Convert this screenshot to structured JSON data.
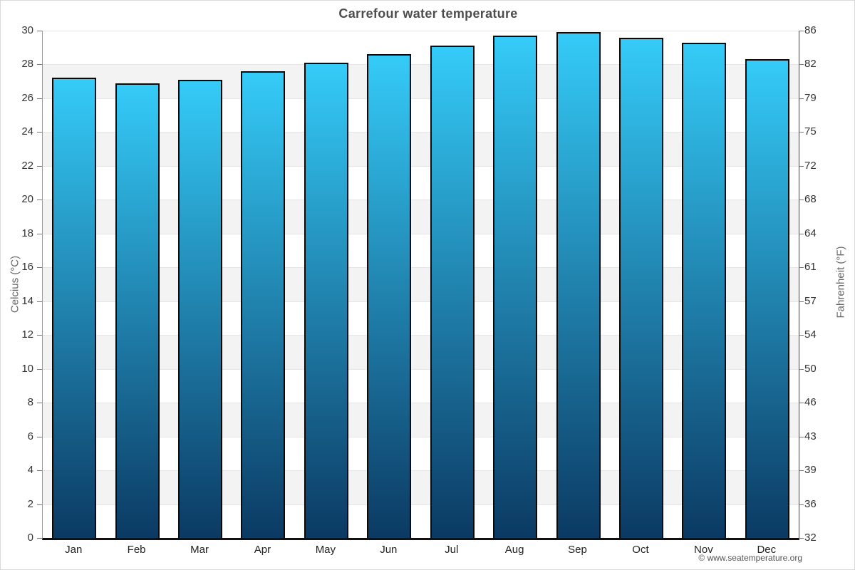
{
  "title": "Carrefour water temperature",
  "footer": {
    "text": "© www.seatemperature.org"
  },
  "chart_data": {
    "type": "bar",
    "title": "Carrefour water temperature",
    "categories": [
      "Jan",
      "Feb",
      "Mar",
      "Apr",
      "May",
      "Jun",
      "Jul",
      "Aug",
      "Sep",
      "Oct",
      "Nov",
      "Dec"
    ],
    "values": [
      27.2,
      26.9,
      27.1,
      27.6,
      28.1,
      28.6,
      29.1,
      29.7,
      29.9,
      29.6,
      29.3,
      28.3
    ],
    "unit": "°C",
    "ylabel_left": "Celcius (°C)",
    "ylabel_right": "Fahrenheit (°F)",
    "xlabel": "",
    "ylim_left": [
      0,
      30
    ],
    "ylim_right": [
      32,
      86
    ],
    "celsius_ticks": [
      0,
      2,
      4,
      6,
      8,
      10,
      12,
      14,
      16,
      18,
      20,
      22,
      24,
      26,
      28,
      30
    ],
    "fahrenheit_ticks": [
      32,
      36,
      39,
      43,
      46,
      50,
      54,
      57,
      61,
      64,
      68,
      72,
      75,
      79,
      82,
      86
    ],
    "grid": true,
    "legend_position": "none",
    "band_colors": [
      "#ffffff",
      "#f3f3f3"
    ],
    "gridline_color": "#e6e6e6",
    "bar_color_top": "#35cbf8",
    "bar_color_bottom": "#0b3a63",
    "bar_border_color": "#0a0a0a"
  }
}
